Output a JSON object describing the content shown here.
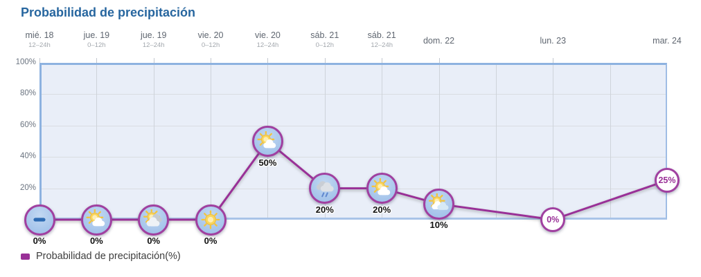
{
  "title": "Probabilidad de precipitación",
  "legend": {
    "label": "Probabilidad de precipitación(%)"
  },
  "colors": {
    "title": "#27669f",
    "line": "#993097",
    "marker_ring": "#a040a0",
    "marker_fill": "#a9c7ec",
    "chart_bg": "#e9eef8",
    "chart_border": "#8db2e0"
  },
  "chart_data": {
    "type": "line",
    "title": "Probabilidad de precipitación",
    "ylabel": "",
    "ylim": [
      0,
      100
    ],
    "y_ticks": [
      0,
      20,
      40,
      60,
      80,
      100
    ],
    "grid": true,
    "legend_position": "bottom-left",
    "slot_count": 11,
    "points": [
      {
        "day": "mié. 18",
        "period": "12–24h",
        "slot": 0,
        "value": 0,
        "label": "0%",
        "icon": "no-data-icon",
        "label_style": "below"
      },
      {
        "day": "jue. 19",
        "period": "0–12h",
        "slot": 1,
        "value": 0,
        "label": "0%",
        "icon": "sun-cloud-icon",
        "label_style": "below"
      },
      {
        "day": "jue. 19",
        "period": "12–24h",
        "slot": 2,
        "value": 0,
        "label": "0%",
        "icon": "clouds-sun-icon",
        "label_style": "below"
      },
      {
        "day": "vie. 20",
        "period": "0–12h",
        "slot": 3,
        "value": 0,
        "label": "0%",
        "icon": "sun-icon",
        "label_style": "below"
      },
      {
        "day": "vie. 20",
        "period": "12–24h",
        "slot": 4,
        "value": 50,
        "label": "50%",
        "icon": "sun-cloud-icon",
        "label_style": "below"
      },
      {
        "day": "sáb. 21",
        "period": "0–12h",
        "slot": 5,
        "value": 20,
        "label": "20%",
        "icon": "rain-icon",
        "label_style": "below"
      },
      {
        "day": "sáb. 21",
        "period": "12–24h",
        "slot": 6,
        "value": 20,
        "label": "20%",
        "icon": "sun-cloud-icon",
        "label_style": "below"
      },
      {
        "day": "dom. 22",
        "period": "",
        "slot": 7,
        "value": 10,
        "label": "10%",
        "icon": "sun-clouds-icon",
        "label_style": "below"
      },
      {
        "day": "lun. 23",
        "period": "",
        "slot": 9,
        "value": 0,
        "label": "0%",
        "icon": "",
        "label_style": "inside"
      },
      {
        "day": "mar. 24",
        "period": "",
        "slot": 11,
        "value": 25,
        "label": "25%",
        "icon": "",
        "label_style": "inside"
      }
    ]
  }
}
